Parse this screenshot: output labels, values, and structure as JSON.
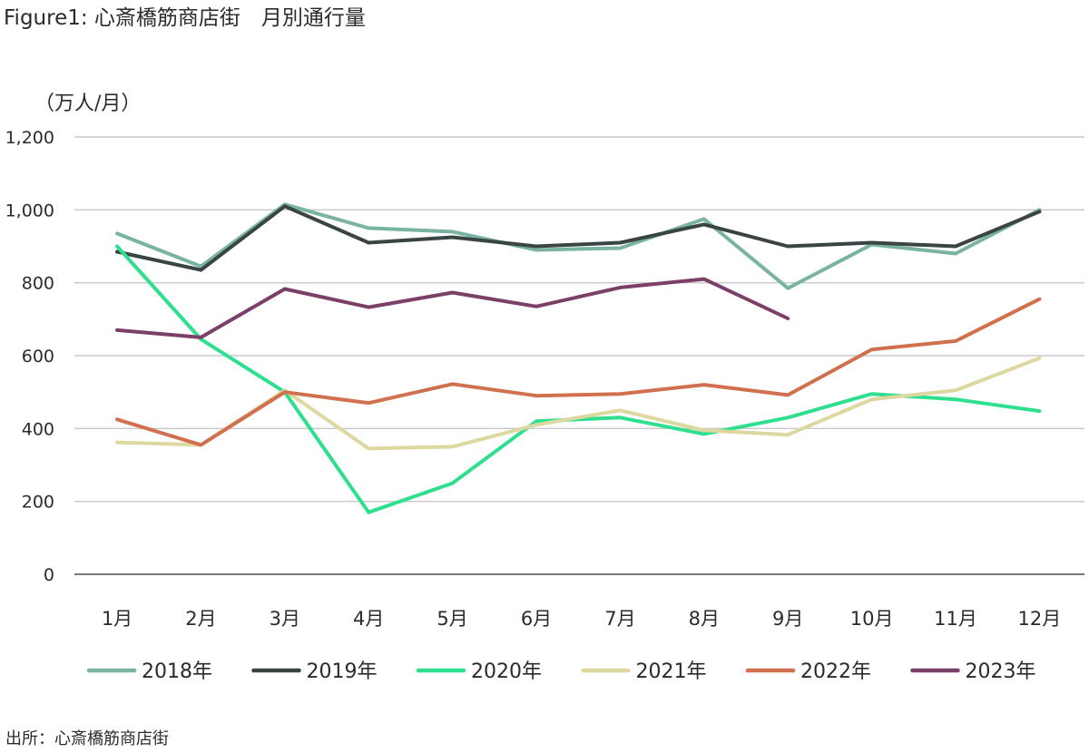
{
  "title": "Figure1: 心斎橋筋商店街　月別通行量",
  "source": "出所：心斎橋筋商店街",
  "chart_data": {
    "type": "line",
    "title": "心斎橋筋商店街　月別通行量",
    "ylabel": "（万人/月）",
    "xlabel": "",
    "ylim": [
      0,
      1200
    ],
    "yticks": [
      0,
      200,
      400,
      600,
      800,
      1000,
      1200
    ],
    "ytick_labels": [
      "0",
      "200",
      "400",
      "600",
      "800",
      "1,000",
      "1,200"
    ],
    "categories": [
      "1月",
      "2月",
      "3月",
      "4月",
      "5月",
      "6月",
      "7月",
      "8月",
      "9月",
      "10月",
      "11月",
      "12月"
    ],
    "grid": true,
    "legend_position": "bottom",
    "series": [
      {
        "name": "2018年",
        "color": "#7ab3a2",
        "values": [
          935,
          845,
          1015,
          950,
          940,
          890,
          895,
          975,
          785,
          905,
          880,
          1000
        ]
      },
      {
        "name": "2019年",
        "color": "#3a4444",
        "values": [
          885,
          835,
          1010,
          910,
          925,
          900,
          910,
          960,
          900,
          910,
          900,
          995
        ]
      },
      {
        "name": "2020年",
        "color": "#2ee08e",
        "values": [
          900,
          645,
          500,
          170,
          250,
          420,
          430,
          385,
          430,
          495,
          480,
          448
        ]
      },
      {
        "name": "2021年",
        "color": "#ddd8a0",
        "values": [
          362,
          355,
          505,
          345,
          350,
          410,
          450,
          395,
          383,
          480,
          505,
          593
        ]
      },
      {
        "name": "2022年",
        "color": "#d1704e",
        "values": [
          425,
          355,
          500,
          470,
          522,
          490,
          495,
          520,
          492,
          617,
          640,
          755
        ]
      },
      {
        "name": "2023年",
        "color": "#7c3f68",
        "values": [
          670,
          650,
          783,
          733,
          773,
          735,
          787,
          810,
          702,
          null,
          null,
          null
        ]
      }
    ]
  }
}
